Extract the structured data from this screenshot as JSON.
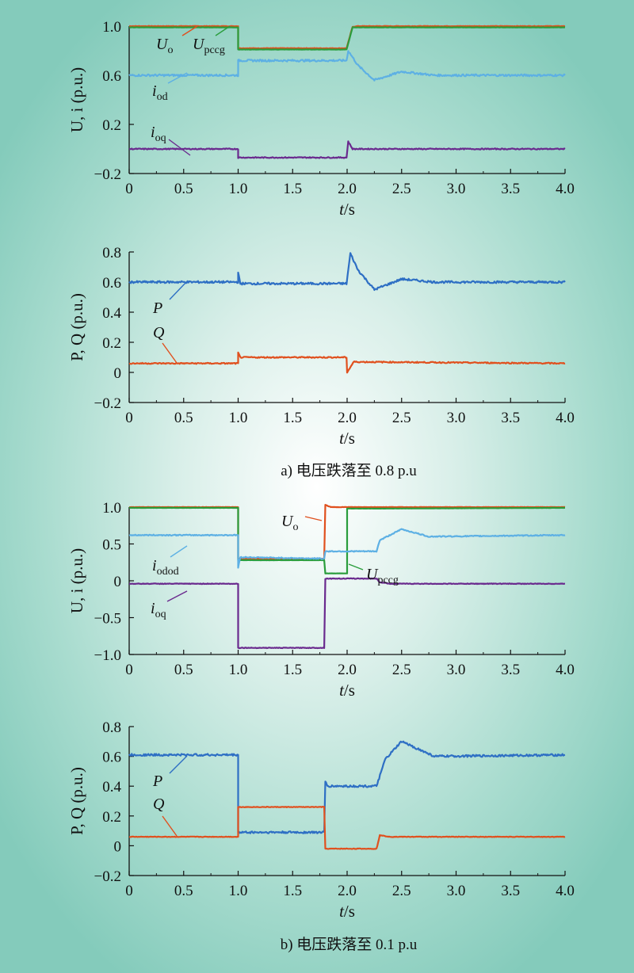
{
  "chart_data": [
    {
      "type": "line",
      "xlabel": "t/s",
      "ylabel": "U, i (p.u.)",
      "xlim": [
        0,
        4.0
      ],
      "ylim": [
        -0.2,
        1.0
      ],
      "xticks": [
        "0",
        "0.5",
        "1.0",
        "1.5",
        "2.0",
        "2.5",
        "3.0",
        "3.5",
        "4.0"
      ],
      "yticks": [
        {
          "v": 1.0,
          "t": "1.0"
        },
        {
          "v": 0.6,
          "t": "0.6"
        },
        {
          "v": 0.2,
          "t": "0.2"
        },
        {
          "v": -0.2,
          "t": "−0.2"
        }
      ],
      "series": [
        {
          "name": "U_o",
          "color": "#e0501e",
          "noise": 0.002,
          "points": [
            [
              0,
              1.0
            ],
            [
              1.0,
              1.0
            ],
            [
              1.0,
              0.82
            ],
            [
              1.995,
              0.82
            ],
            [
              2.05,
              0.995
            ],
            [
              2.1,
              1.0
            ],
            [
              4.0,
              1.0
            ]
          ]
        },
        {
          "name": "U_pccg",
          "color": "#2a9d3c",
          "noise": 0.001,
          "points": [
            [
              0,
              0.99
            ],
            [
              1.0,
              0.99
            ],
            [
              1.0,
              0.81
            ],
            [
              1.995,
              0.81
            ],
            [
              2.05,
              0.99
            ],
            [
              4.0,
              0.99
            ]
          ]
        },
        {
          "name": "i_od",
          "color": "#5db0e4",
          "noise": 0.008,
          "points": [
            [
              0,
              0.6
            ],
            [
              1.0,
              0.6
            ],
            [
              1.0,
              0.72
            ],
            [
              1.995,
              0.72
            ],
            [
              2.01,
              0.8
            ],
            [
              2.1,
              0.68
            ],
            [
              2.25,
              0.56
            ],
            [
              2.5,
              0.63
            ],
            [
              2.8,
              0.6
            ],
            [
              4.0,
              0.6
            ]
          ]
        },
        {
          "name": "i_oq",
          "color": "#6a2a8e",
          "noise": 0.004,
          "points": [
            [
              0,
              0.0
            ],
            [
              1.0,
              0.0
            ],
            [
              1.0,
              -0.07
            ],
            [
              1.995,
              -0.07
            ],
            [
              2.01,
              0.06
            ],
            [
              2.05,
              0.0
            ],
            [
              4.0,
              0.0
            ]
          ]
        }
      ],
      "labels": [
        {
          "main": "U",
          "sub": "o"
        },
        {
          "main": "U",
          "sub": "pccg"
        },
        {
          "main": "i",
          "sub": "od"
        },
        {
          "main": "i",
          "sub": "oq"
        }
      ]
    },
    {
      "type": "line",
      "xlabel": "t/s",
      "ylabel": "P, Q (p.u.)",
      "xlim": [
        0,
        4.0
      ],
      "ylim": [
        -0.2,
        0.8
      ],
      "xticks": [
        "0",
        "0.5",
        "1.0",
        "1.5",
        "2.0",
        "2.5",
        "3.0",
        "3.5",
        "4.0"
      ],
      "yticks": [
        {
          "v": 0.8,
          "t": "0.8"
        },
        {
          "v": 0.6,
          "t": "0.6"
        },
        {
          "v": 0.4,
          "t": "0.4"
        },
        {
          "v": 0.2,
          "t": "0.2"
        },
        {
          "v": 0,
          "t": "0"
        },
        {
          "v": -0.2,
          "t": "−0.2"
        }
      ],
      "series": [
        {
          "name": "P",
          "color": "#2e6fc4",
          "noise": 0.007,
          "points": [
            [
              0,
              0.6
            ],
            [
              1.0,
              0.6
            ],
            [
              1.0,
              0.66
            ],
            [
              1.02,
              0.59
            ],
            [
              1.995,
              0.59
            ],
            [
              2.03,
              0.79
            ],
            [
              2.1,
              0.68
            ],
            [
              2.25,
              0.55
            ],
            [
              2.5,
              0.62
            ],
            [
              2.8,
              0.6
            ],
            [
              4.0,
              0.6
            ]
          ]
        },
        {
          "name": "Q",
          "color": "#e0501e",
          "noise": 0.004,
          "points": [
            [
              0,
              0.06
            ],
            [
              1.0,
              0.06
            ],
            [
              1.0,
              0.13
            ],
            [
              1.02,
              0.1
            ],
            [
              1.995,
              0.1
            ],
            [
              2.0,
              0.0
            ],
            [
              2.06,
              0.07
            ],
            [
              4.0,
              0.06
            ]
          ]
        }
      ],
      "labels": [
        {
          "main": "P",
          "sub": ""
        },
        {
          "main": "Q",
          "sub": ""
        }
      ],
      "caption": "a) 电压跌落至 0.8 p.u"
    },
    {
      "type": "line",
      "xlabel": "t/s",
      "ylabel": "U, i (p.u.)",
      "xlim": [
        0,
        4.0
      ],
      "ylim": [
        -1.0,
        1.0
      ],
      "xticks": [
        "0",
        "0.5",
        "1.0",
        "1.5",
        "2.0",
        "2.5",
        "3.0",
        "3.5",
        "4.0"
      ],
      "yticks": [
        {
          "v": 1.0,
          "t": "1.0"
        },
        {
          "v": 0.5,
          "t": "0.5"
        },
        {
          "v": 0,
          "t": "0"
        },
        {
          "v": -0.5,
          "t": "−0.5"
        },
        {
          "v": -1.0,
          "t": "−1.0"
        }
      ],
      "series": [
        {
          "name": "U_o",
          "color": "#e0501e",
          "noise": 0.002,
          "points": [
            [
              0,
              1.0
            ],
            [
              1.0,
              1.0
            ],
            [
              1.0,
              0.3
            ],
            [
              1.79,
              0.3
            ],
            [
              1.8,
              1.03
            ],
            [
              1.85,
              1.0
            ],
            [
              4.0,
              1.0
            ]
          ]
        },
        {
          "name": "U_pccg",
          "color": "#2a9d3c",
          "noise": 0.001,
          "points": [
            [
              0,
              0.99
            ],
            [
              1.0,
              0.99
            ],
            [
              1.0,
              0.28
            ],
            [
              1.79,
              0.28
            ],
            [
              1.8,
              0.1
            ],
            [
              2.0,
              0.1
            ],
            [
              2.0,
              0.98
            ],
            [
              2.27,
              0.98
            ],
            [
              4.0,
              0.99
            ]
          ]
        },
        {
          "name": "i_odod",
          "color": "#5db0e4",
          "noise": 0.007,
          "points": [
            [
              0,
              0.62
            ],
            [
              1.0,
              0.62
            ],
            [
              1.0,
              0.18
            ],
            [
              1.02,
              0.32
            ],
            [
              1.79,
              0.3
            ],
            [
              1.8,
              0.4
            ],
            [
              2.27,
              0.4
            ],
            [
              2.3,
              0.55
            ],
            [
              2.5,
              0.7
            ],
            [
              2.75,
              0.6
            ],
            [
              4.0,
              0.62
            ]
          ]
        },
        {
          "name": "i_oq",
          "color": "#6a2a8e",
          "noise": 0.004,
          "points": [
            [
              0,
              -0.04
            ],
            [
              1.0,
              -0.04
            ],
            [
              1.0,
              -0.91
            ],
            [
              1.79,
              -0.91
            ],
            [
              1.8,
              0.03
            ],
            [
              2.27,
              0.03
            ],
            [
              2.3,
              -0.02
            ],
            [
              2.4,
              -0.04
            ],
            [
              4.0,
              -0.04
            ]
          ]
        }
      ],
      "labels": [
        {
          "main": "U",
          "sub": "o"
        },
        {
          "main": "U",
          "sub": "pccg"
        },
        {
          "main": "i",
          "sub": "odod"
        },
        {
          "main": "i",
          "sub": "oq"
        }
      ]
    },
    {
      "type": "line",
      "xlabel": "t/s",
      "ylabel": "P, Q (p.u.)",
      "xlim": [
        0,
        4.0
      ],
      "ylim": [
        -0.2,
        0.8
      ],
      "xticks": [
        "0",
        "0.5",
        "1.0",
        "1.5",
        "2.0",
        "2.5",
        "3.0",
        "3.5",
        "4.0"
      ],
      "yticks": [
        {
          "v": 0.8,
          "t": "0.8"
        },
        {
          "v": 0.6,
          "t": "0.6"
        },
        {
          "v": 0.4,
          "t": "0.4"
        },
        {
          "v": 0.2,
          "t": "0.2"
        },
        {
          "v": 0,
          "t": "0"
        },
        {
          "v": -0.2,
          "t": "−0.2"
        }
      ],
      "series": [
        {
          "name": "P",
          "color": "#2e6fc4",
          "noise": 0.007,
          "points": [
            [
              0,
              0.61
            ],
            [
              1.0,
              0.61
            ],
            [
              1.0,
              0.09
            ],
            [
              1.79,
              0.09
            ],
            [
              1.8,
              0.43
            ],
            [
              1.82,
              0.4
            ],
            [
              2.27,
              0.4
            ],
            [
              2.35,
              0.58
            ],
            [
              2.5,
              0.7
            ],
            [
              2.8,
              0.6
            ],
            [
              4.0,
              0.61
            ]
          ]
        },
        {
          "name": "Q",
          "color": "#e0501e",
          "noise": 0.002,
          "points": [
            [
              0,
              0.06
            ],
            [
              1.0,
              0.06
            ],
            [
              1.0,
              0.26
            ],
            [
              1.79,
              0.26
            ],
            [
              1.8,
              -0.02
            ],
            [
              2.27,
              -0.02
            ],
            [
              2.3,
              0.07
            ],
            [
              2.4,
              0.06
            ],
            [
              4.0,
              0.06
            ]
          ]
        }
      ],
      "labels": [
        {
          "main": "P",
          "sub": ""
        },
        {
          "main": "Q",
          "sub": ""
        }
      ],
      "caption": "b) 电压跌落至 0.1 p.u"
    }
  ]
}
